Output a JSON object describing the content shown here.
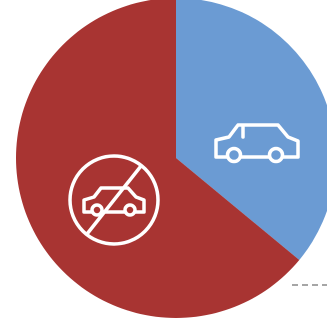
{
  "chart_data": {
    "type": "pie",
    "slices": [
      {
        "category": "car-icon",
        "value": 0.36,
        "color": "#6b9bd3"
      },
      {
        "category": "no-car-icon",
        "value": 0.64,
        "color": "#a83432"
      }
    ],
    "start": "12 o'clock",
    "direction": "clockwise",
    "legend": "none",
    "leader_line_color": "#a6a6a6"
  }
}
